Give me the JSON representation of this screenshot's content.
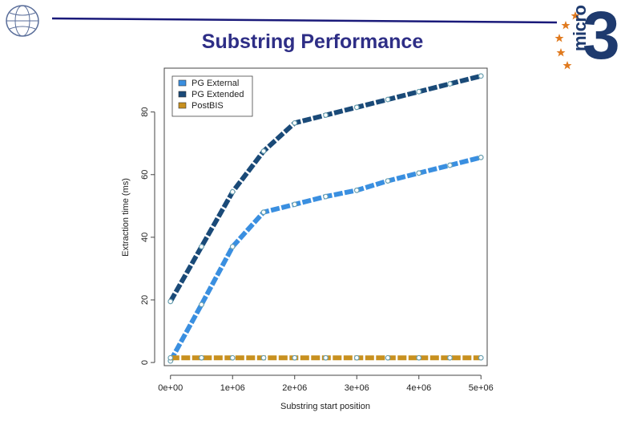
{
  "slide": {
    "title": "Substring Performance",
    "brand_text": "micro",
    "brand_digit": "3"
  },
  "colors": {
    "title": "#2e2e86",
    "rule": "#1a1a7a",
    "brand": "#1e3a6e",
    "stars": "#e07a1f",
    "pg_external": "#3a8fe0",
    "pg_extended": "#1a4a78",
    "postbis": "#c8901f"
  },
  "icons": {
    "left_logo": "globe-emblem-icon",
    "right_logo": "micro3-logo-icon"
  },
  "chart_data": {
    "type": "line",
    "title": "",
    "xlabel": "Substring start position",
    "ylabel": "Extraction time (ms)",
    "xlim": [
      -100000,
      5100000
    ],
    "ylim": [
      -1,
      94
    ],
    "x_ticks": [
      0,
      1000000,
      2000000,
      3000000,
      4000000,
      5000000
    ],
    "x_tick_labels": [
      "0e+00",
      "1e+06",
      "2e+06",
      "3e+06",
      "4e+06",
      "5e+06"
    ],
    "y_ticks": [
      0,
      20,
      40,
      60,
      80
    ],
    "y_tick_labels": [
      "0",
      "20",
      "40",
      "60",
      "80"
    ],
    "grid": false,
    "legend_position": "top-left",
    "x": [
      0,
      500000,
      1000000,
      1500000,
      2000000,
      2500000,
      3000000,
      3500000,
      4000000,
      4500000,
      5000000
    ],
    "series": [
      {
        "name": "PG External",
        "color": "#3a8fe0",
        "values": [
          0.5,
          18.5,
          37,
          48,
          50.5,
          53,
          55,
          58,
          60.5,
          63,
          65.5
        ]
      },
      {
        "name": "PG Extended",
        "color": "#1a4a78",
        "values": [
          19.5,
          37,
          54.5,
          67.5,
          76.5,
          79,
          81.5,
          84,
          86.5,
          89,
          91.5
        ]
      },
      {
        "name": "PostBIS",
        "color": "#c8901f",
        "values": [
          1.5,
          1.5,
          1.5,
          1.5,
          1.5,
          1.5,
          1.5,
          1.5,
          1.5,
          1.5,
          1.5
        ]
      }
    ]
  }
}
